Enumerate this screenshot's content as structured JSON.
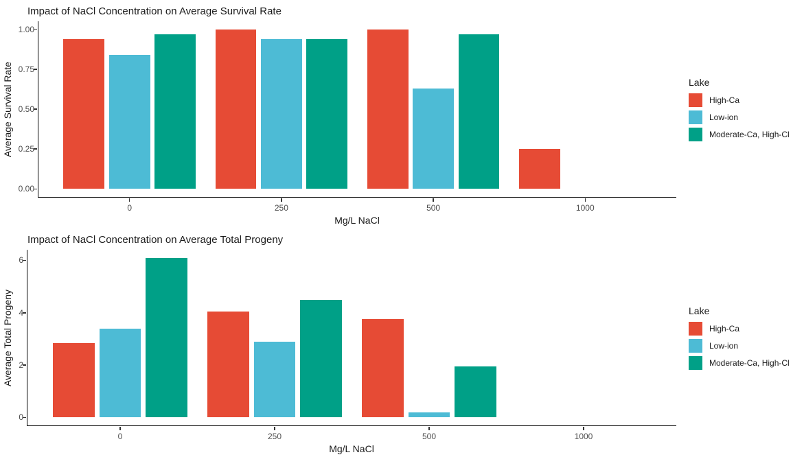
{
  "palette": {
    "high_ca": "#E64B35",
    "low_ion": "#4DBBD5",
    "moderate_ca_high_cl": "#00A087",
    "axis_line": "#000000",
    "tick_text": "#4d4d4d",
    "title_text": "#1a1a1a",
    "background": "#ffffff"
  },
  "chart_data": [
    {
      "type": "bar",
      "title": "Impact of NaCl Concentration on Average Survival Rate",
      "xlabel": "Mg/L NaCl",
      "ylabel": "Average Survival Rate",
      "legend_title": "Lake",
      "legend_position": "right",
      "grid": false,
      "categories": [
        "0",
        "250",
        "500",
        "1000"
      ],
      "series": [
        {
          "name": "High-Ca",
          "color": "#E64B35",
          "values": [
            0.94,
            1.0,
            1.0,
            0.25
          ]
        },
        {
          "name": "Low-ion",
          "color": "#4DBBD5",
          "values": [
            0.84,
            0.94,
            0.63,
            null
          ]
        },
        {
          "name": "Moderate-Ca, High-Cl",
          "color": "#00A087",
          "values": [
            0.97,
            0.94,
            0.97,
            null
          ]
        }
      ],
      "yticks": [
        {
          "value": 0.0,
          "label": "0.00"
        },
        {
          "value": 0.25,
          "label": "0.25"
        },
        {
          "value": 0.5,
          "label": "0.50"
        },
        {
          "value": 0.75,
          "label": "0.75"
        },
        {
          "value": 1.0,
          "label": "1.00"
        }
      ],
      "ylim": [
        0,
        1.0
      ]
    },
    {
      "type": "bar",
      "title": "Impact of NaCl Concentration on Average Total Progeny",
      "xlabel": "Mg/L NaCl",
      "ylabel": "Average Total Progeny",
      "legend_title": "Lake",
      "legend_position": "right",
      "grid": false,
      "categories": [
        "0",
        "250",
        "500",
        "1000"
      ],
      "series": [
        {
          "name": "High-Ca",
          "color": "#E64B35",
          "values": [
            2.85,
            4.05,
            3.75,
            null
          ]
        },
        {
          "name": "Low-ion",
          "color": "#4DBBD5",
          "values": [
            3.4,
            2.9,
            0.2,
            null
          ]
        },
        {
          "name": "Moderate-Ca, High-Cl",
          "color": "#00A087",
          "values": [
            6.1,
            4.5,
            1.95,
            null
          ]
        }
      ],
      "yticks": [
        {
          "value": 0,
          "label": "0"
        },
        {
          "value": 2,
          "label": "2"
        },
        {
          "value": 4,
          "label": "4"
        },
        {
          "value": 6,
          "label": "6"
        }
      ],
      "ylim": [
        0,
        6.1
      ]
    }
  ]
}
